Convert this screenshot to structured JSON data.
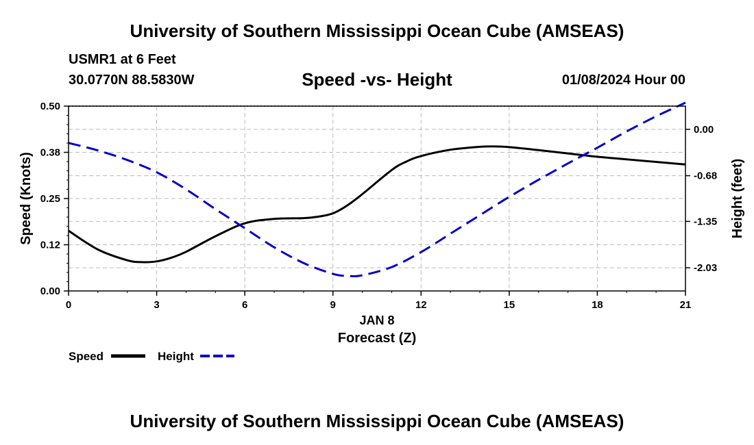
{
  "header": {
    "title": "University of Southern Mississippi Ocean Cube (AMSEAS)",
    "station": "USMR1 at 6 Feet",
    "coords": "30.0770N  88.5830W",
    "chart_title": "Speed -vs- Height",
    "datetime": "01/08/2024 Hour 00"
  },
  "footer": {
    "title": "University of Southern Mississippi Ocean Cube (AMSEAS)"
  },
  "colors": {
    "speed": "#000000",
    "height": "#0000cc",
    "grid": "#bbbbbb"
  },
  "chart_data": {
    "type": "line",
    "title": "Speed -vs- Height",
    "xlabel": "Forecast (Z)",
    "date_label": "JAN 8",
    "ylabel_left": "Speed (Knots)",
    "ylabel_right": "Height (feet)",
    "xlim": [
      0,
      21
    ],
    "ylim_left": [
      0,
      0.5
    ],
    "ylim_right": [
      -2.37,
      0.34
    ],
    "x_ticks": [
      0,
      3,
      6,
      9,
      12,
      15,
      18,
      21
    ],
    "x_tick_labels": [
      "0",
      "3",
      "6",
      "9",
      "12",
      "15",
      "18",
      "21"
    ],
    "left_ticks": [
      0.0,
      0.125,
      0.25,
      0.375,
      0.5
    ],
    "left_tick_labels": [
      "0.00",
      "0.12",
      "0.25",
      "0.38",
      "0.50"
    ],
    "right_ticks": [
      0.0,
      -0.68,
      -1.35,
      -2.03
    ],
    "right_tick_labels": [
      "0.00",
      "-0.68",
      "-1.35",
      "-2.03"
    ],
    "grid": true,
    "series": [
      {
        "name": "Speed",
        "axis": "left",
        "style": "solid",
        "x": [
          0,
          1,
          2,
          2.5,
          3,
          3.5,
          4,
          5,
          6,
          7,
          8,
          8.5,
          9,
          9.5,
          10,
          11,
          11.5,
          12,
          13,
          14,
          14.5,
          15,
          16,
          17,
          18,
          19,
          20,
          21
        ],
        "values": [
          0.163,
          0.112,
          0.083,
          0.078,
          0.08,
          0.09,
          0.106,
          0.148,
          0.183,
          0.195,
          0.197,
          0.201,
          0.21,
          0.232,
          0.262,
          0.327,
          0.35,
          0.365,
          0.382,
          0.39,
          0.391,
          0.389,
          0.381,
          0.372,
          0.363,
          0.356,
          0.349,
          0.342
        ]
      },
      {
        "name": "Height",
        "axis": "right",
        "style": "dashed",
        "x": [
          0,
          1,
          2,
          3,
          4,
          5,
          6,
          7,
          8,
          9,
          9.5,
          10,
          11,
          12,
          13,
          14,
          15,
          16,
          17,
          18,
          19,
          20,
          21
        ],
        "values": [
          -0.2,
          -0.31,
          -0.45,
          -0.63,
          -0.88,
          -1.17,
          -1.45,
          -1.73,
          -1.96,
          -2.12,
          -2.15,
          -2.14,
          -2.02,
          -1.8,
          -1.53,
          -1.26,
          -0.99,
          -0.74,
          -0.5,
          -0.27,
          -0.03,
          0.19,
          0.39
        ]
      }
    ],
    "legend": [
      {
        "label": "Speed",
        "style": "solid"
      },
      {
        "label": "Height",
        "style": "dashed"
      }
    ]
  }
}
